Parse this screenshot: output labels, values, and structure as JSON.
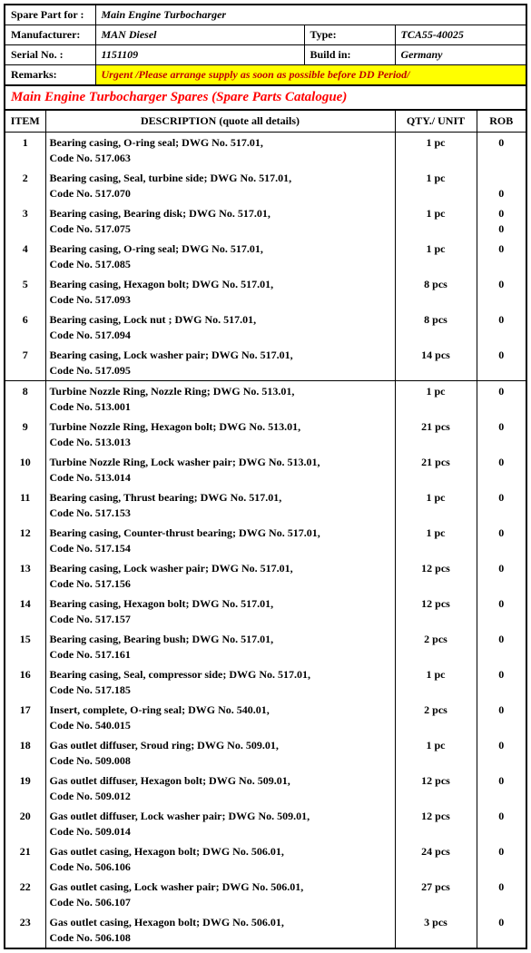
{
  "header": {
    "spare_part_for_label": "Spare Part for :",
    "spare_part_for": "Main Engine Turbocharger",
    "manufacturer_label": "Manufacturer:",
    "manufacturer": "MAN Diesel",
    "type_label": "Type:",
    "type": "TCA55-40025",
    "serial_no_label": "Serial No. :",
    "serial_no": "1151109",
    "build_in_label": "Build in:",
    "build_in": "Germany",
    "remarks_label": "Remarks:",
    "remarks": "Urgent  /Please arrange supply as soon as possible before DD Period/"
  },
  "title": "Main Engine Turbocharger Spares (Spare Parts Catalogue)",
  "columns": {
    "item": "ITEM",
    "description": "DESCRIPTION (quote all details)",
    "qty": "QTY./ UNIT",
    "rob": "ROB"
  },
  "group_breaks": [
    7
  ],
  "rows": [
    {
      "item": "1",
      "desc_line1": "Bearing casing, O-ring seal; DWG No. 517.01,",
      "desc_line2": "Code No. 517.063",
      "qty": "1 pc",
      "rob": "0"
    },
    {
      "item": "2",
      "desc_line1": "Bearing casing, Seal, turbine side; DWG No. 517.01,",
      "desc_line2": "Code No. 517.070",
      "qty": "1 pc",
      "rob": "0",
      "rob_on_line2": true
    },
    {
      "item": "3",
      "desc_line1": "Bearing casing, Bearing disk; DWG No. 517.01,",
      "desc_line2": "Code No. 517.075",
      "qty": "1 pc",
      "rob": "0",
      "extra_rob": "0"
    },
    {
      "item": "4",
      "desc_line1": "Bearing casing, O-ring seal; DWG No. 517.01,",
      "desc_line2": "Code No. 517.085",
      "qty": "1 pc",
      "rob": "0"
    },
    {
      "item": "5",
      "desc_line1": "Bearing casing, Hexagon bolt; DWG No. 517.01,",
      "desc_line2": "Code No. 517.093",
      "qty": "8 pcs",
      "rob": "0"
    },
    {
      "item": "6",
      "desc_line1": "Bearing casing, Lock nut ; DWG No. 517.01,",
      "desc_line2": "Code No. 517.094",
      "qty": "8 pcs",
      "rob": "0"
    },
    {
      "item": "7",
      "desc_line1": "Bearing casing, Lock washer pair; DWG No. 517.01,",
      "desc_line2": "Code No. 517.095",
      "qty": "14 pcs",
      "rob": "0"
    },
    {
      "item": "8",
      "desc_line1": "Turbine Nozzle Ring, Nozzle Ring; DWG No. 513.01,",
      "desc_line2": "Code No. 513.001",
      "qty": "1 pc",
      "rob": "0"
    },
    {
      "item": "9",
      "desc_line1": "Turbine Nozzle Ring, Hexagon bolt; DWG No. 513.01,",
      "desc_line2": "Code No. 513.013",
      "qty": "21 pcs",
      "rob": "0"
    },
    {
      "item": "10",
      "desc_line1": "Turbine Nozzle Ring, Lock washer pair; DWG No. 513.01,",
      "desc_line2": "Code No. 513.014",
      "qty": "21 pcs",
      "rob": "0"
    },
    {
      "item": "11",
      "desc_line1": "Bearing casing, Thrust bearing; DWG No. 517.01,",
      "desc_line2": "Code No. 517.153",
      "qty": "1 pc",
      "rob": "0"
    },
    {
      "item": "12",
      "desc_line1": "Bearing casing, Counter-thrust bearing; DWG No. 517.01,",
      "desc_line2": "Code No. 517.154",
      "qty": "1 pc",
      "rob": "0"
    },
    {
      "item": "13",
      "desc_line1": "Bearing casing, Lock washer pair; DWG No. 517.01,",
      "desc_line2": "Code No. 517.156",
      "qty": "12 pcs",
      "rob": "0"
    },
    {
      "item": "14",
      "desc_line1": "Bearing casing, Hexagon bolt; DWG No. 517.01,",
      "desc_line2": "Code No. 517.157",
      "qty": "12 pcs",
      "rob": "0"
    },
    {
      "item": "15",
      "desc_line1": "Bearing casing, Bearing bush; DWG No. 517.01,",
      "desc_line2": "Code No. 517.161",
      "qty": "2 pcs",
      "rob": "0"
    },
    {
      "item": "16",
      "desc_line1": "Bearing casing, Seal, compressor side; DWG No. 517.01,",
      "desc_line2": "Code No. 517.185",
      "qty": "1 pc",
      "rob": "0"
    },
    {
      "item": "17",
      "desc_line1": "Insert, complete, O-ring seal; DWG No. 540.01,",
      "desc_line2": "Code No. 540.015",
      "qty": "2 pcs",
      "rob": "0"
    },
    {
      "item": "18",
      "desc_line1": "Gas outlet diffuser, Sroud ring; DWG No. 509.01,",
      "desc_line2": "Code No. 509.008",
      "qty": "1 pc",
      "rob": "0"
    },
    {
      "item": "19",
      "desc_line1": "Gas outlet diffuser, Hexagon bolt; DWG No. 509.01,",
      "desc_line2": "Code No. 509.012",
      "qty": "12 pcs",
      "rob": "0"
    },
    {
      "item": "20",
      "desc_line1": "Gas outlet diffuser, Lock washer pair; DWG No. 509.01,",
      "desc_line2": "Code No. 509.014",
      "qty": "12 pcs",
      "rob": "0"
    },
    {
      "item": "21",
      "desc_line1": "Gas outlet casing, Hexagon bolt; DWG No. 506.01,",
      "desc_line2": "Code No. 506.106",
      "qty": "24 pcs",
      "rob": "0"
    },
    {
      "item": "22",
      "desc_line1": "Gas outlet casing, Lock washer pair; DWG No. 506.01,",
      "desc_line2": "Code No. 506.107",
      "qty": "27 pcs",
      "rob": "0"
    },
    {
      "item": "23",
      "desc_line1": "Gas outlet casing, Hexagon bolt; DWG No. 506.01,",
      "desc_line2": "Code No. 506.108",
      "qty": "3 pcs",
      "rob": "0"
    }
  ]
}
